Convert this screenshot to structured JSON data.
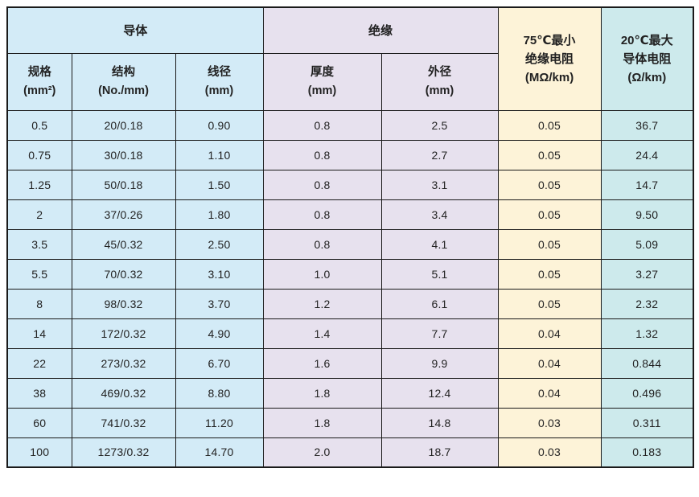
{
  "table": {
    "groups": {
      "conductor": "导体",
      "insulation": "绝缘",
      "insulation_resistance": "75℃最小\n绝缘电阻\n(MΩ/km)",
      "conductor_resistance": "20℃最大\n导体电阻\n(Ω/km)"
    },
    "sub_headers": {
      "spec": "规格\n(mm²)",
      "structure": "结构\n(No./mm)",
      "wire_diameter": "线径\n(mm)",
      "thickness": "厚度\n(mm)",
      "outer_diameter": "外径\n(mm)"
    },
    "rows": [
      [
        "0.5",
        "20/0.18",
        "0.90",
        "0.8",
        "2.5",
        "0.05",
        "36.7"
      ],
      [
        "0.75",
        "30/0.18",
        "1.10",
        "0.8",
        "2.7",
        "0.05",
        "24.4"
      ],
      [
        "1.25",
        "50/0.18",
        "1.50",
        "0.8",
        "3.1",
        "0.05",
        "14.7"
      ],
      [
        "2",
        "37/0.26",
        "1.80",
        "0.8",
        "3.4",
        "0.05",
        "9.50"
      ],
      [
        "3.5",
        "45/0.32",
        "2.50",
        "0.8",
        "4.1",
        "0.05",
        "5.09"
      ],
      [
        "5.5",
        "70/0.32",
        "3.10",
        "1.0",
        "5.1",
        "0.05",
        "3.27"
      ],
      [
        "8",
        "98/0.32",
        "3.70",
        "1.2",
        "6.1",
        "0.05",
        "2.32"
      ],
      [
        "14",
        "172/0.32",
        "4.90",
        "1.4",
        "7.7",
        "0.04",
        "1.32"
      ],
      [
        "22",
        "273/0.32",
        "6.70",
        "1.6",
        "9.9",
        "0.04",
        "0.844"
      ],
      [
        "38",
        "469/0.32",
        "8.80",
        "1.8",
        "12.4",
        "0.04",
        "0.496"
      ],
      [
        "60",
        "741/0.32",
        "11.20",
        "1.8",
        "14.8",
        "0.03",
        "0.311"
      ],
      [
        "100",
        "1273/0.32",
        "14.70",
        "2.0",
        "18.7",
        "0.03",
        "0.183"
      ]
    ],
    "colors": {
      "conductor_band": "#d3ebf7",
      "insulation_band": "#e7e1ee",
      "insulation_resistance_band": "#fdf3d8",
      "conductor_resistance_band": "#cdeaec",
      "border": "#1a1a1a",
      "text": "#222222"
    }
  }
}
